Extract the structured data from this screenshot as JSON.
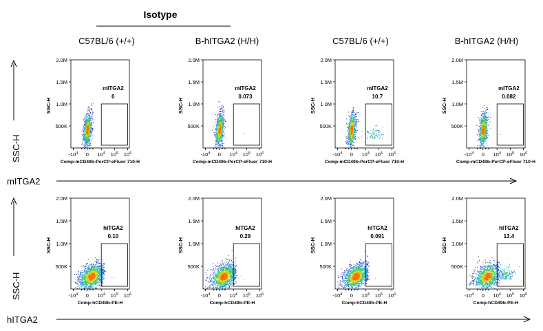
{
  "header": {
    "group_label": "Isotype",
    "column_labels": [
      "C57BL/6 (+/+)",
      "B-hITGA2 (H/H)",
      "C57BL/6 (+/+)",
      "B-hITGA2 (H/H)"
    ]
  },
  "rows": [
    {
      "axis_arrow_label": "mITGA2",
      "side_label": "SSC-H"
    },
    {
      "axis_arrow_label": "hITGA2",
      "side_label": "SSC-H"
    }
  ],
  "chart_data": [
    {
      "type": "scatter",
      "row": 0,
      "col": 0,
      "ylabel": "SSC-H",
      "xlabel": "Comp-mCD49b-PerCP-eFluor 710-H",
      "gate_label": "mITGA2",
      "gate_value": "0",
      "y_ticks": [
        "1.0M",
        "1.5M",
        "2.0M",
        "500K"
      ],
      "y_tick_values": [
        1000000,
        1500000,
        2000000,
        500000
      ],
      "x_ticks": [
        "-10^4",
        "0",
        "10^4",
        "10^5",
        "10^6"
      ],
      "x_tick_values": [
        -10000,
        0,
        10000,
        100000,
        1000000
      ],
      "x_scale": "biexponential",
      "ylim": [
        0,
        2000000
      ],
      "gate": {
        "x": [
          10000,
          1000000
        ],
        "y": [
          0,
          1000000
        ]
      }
    },
    {
      "type": "scatter",
      "row": 0,
      "col": 1,
      "ylabel": "SSC-H",
      "xlabel": "Comp-mCD49b-PerCP-eFluor 710-H",
      "gate_label": "mITGA2",
      "gate_value": "0.073",
      "y_ticks": [
        "1.0M",
        "1.5M",
        "2.0M",
        "500K"
      ],
      "y_tick_values": [
        1000000,
        1500000,
        2000000,
        500000
      ],
      "x_ticks": [
        "-10^4",
        "0",
        "10^4",
        "10^5",
        "10^6"
      ],
      "x_tick_values": [
        -10000,
        0,
        10000,
        100000,
        1000000
      ],
      "x_scale": "biexponential",
      "ylim": [
        0,
        2000000
      ],
      "gate": {
        "x": [
          10000,
          1000000
        ],
        "y": [
          0,
          1000000
        ]
      }
    },
    {
      "type": "scatter",
      "row": 0,
      "col": 2,
      "ylabel": "SSC-H",
      "xlabel": "Comp-mCD49b-PerCP-eFluor 710-H",
      "gate_label": "mITGA2",
      "gate_value": "10.7",
      "y_ticks": [
        "1.0M",
        "1.5M",
        "2.0M",
        "500K"
      ],
      "y_tick_values": [
        1000000,
        1500000,
        2000000,
        500000
      ],
      "x_ticks": [
        "-10^4",
        "0",
        "10^4",
        "10^5",
        "10^6"
      ],
      "x_tick_values": [
        -10000,
        0,
        10000,
        100000,
        1000000
      ],
      "x_scale": "biexponential",
      "ylim": [
        0,
        2000000
      ],
      "gate": {
        "x": [
          10000,
          1000000
        ],
        "y": [
          0,
          1000000
        ]
      }
    },
    {
      "type": "scatter",
      "row": 0,
      "col": 3,
      "ylabel": "SSC-H",
      "xlabel": "Comp-mCD49b-PerCP-eFluor 710-H",
      "gate_label": "mITGA2",
      "gate_value": "0.082",
      "y_ticks": [
        "1.0M",
        "1.5M",
        "2.0M",
        "500K"
      ],
      "y_tick_values": [
        1000000,
        1500000,
        2000000,
        500000
      ],
      "x_ticks": [
        "-10^4",
        "0",
        "10^4",
        "10^5",
        "10^6"
      ],
      "x_tick_values": [
        -10000,
        0,
        10000,
        100000,
        1000000
      ],
      "x_scale": "biexponential",
      "ylim": [
        0,
        2000000
      ],
      "gate": {
        "x": [
          10000,
          1000000
        ],
        "y": [
          0,
          1000000
        ]
      }
    },
    {
      "type": "scatter",
      "row": 1,
      "col": 0,
      "ylabel": "SSC-H",
      "xlabel": "Comp-hCD49b-PE-H",
      "gate_label": "hITGA2",
      "gate_value": "0.10",
      "y_ticks": [
        "1.0M",
        "1.5M",
        "2.0M",
        "500K"
      ],
      "y_tick_values": [
        1000000,
        1500000,
        2000000,
        500000
      ],
      "x_ticks": [
        "-10^4",
        "0",
        "10^4",
        "10^5",
        "10^6"
      ],
      "x_tick_values": [
        -10000,
        0,
        10000,
        100000,
        1000000
      ],
      "x_scale": "biexponential",
      "ylim": [
        0,
        2000000
      ],
      "gate": {
        "x": [
          10000,
          1000000
        ],
        "y": [
          0,
          1000000
        ]
      }
    },
    {
      "type": "scatter",
      "row": 1,
      "col": 1,
      "ylabel": "SSC-H",
      "xlabel": "Comp-hCD49b-PE-H",
      "gate_label": "hITGA2",
      "gate_value": "0.29",
      "y_ticks": [
        "1.0M",
        "1.5M",
        "2.0M",
        "500K"
      ],
      "y_tick_values": [
        1000000,
        1500000,
        2000000,
        500000
      ],
      "x_ticks": [
        "-10^4",
        "0",
        "10^4",
        "10^5",
        "10^6"
      ],
      "x_tick_values": [
        -10000,
        0,
        10000,
        100000,
        1000000
      ],
      "x_scale": "biexponential",
      "ylim": [
        0,
        2000000
      ],
      "gate": {
        "x": [
          10000,
          1000000
        ],
        "y": [
          0,
          1000000
        ]
      }
    },
    {
      "type": "scatter",
      "row": 1,
      "col": 2,
      "ylabel": "SSC-H",
      "xlabel": "Comp-hCD49b-PE-H",
      "gate_label": "hITGA2",
      "gate_value": "0.091",
      "y_ticks": [
        "1.0M",
        "1.5M",
        "2.0M",
        "500K"
      ],
      "y_tick_values": [
        1000000,
        1500000,
        2000000,
        500000
      ],
      "x_ticks": [
        "-10^4",
        "0",
        "10^4",
        "10^5",
        "10^6"
      ],
      "x_tick_values": [
        -10000,
        0,
        10000,
        100000,
        1000000
      ],
      "x_scale": "biexponential",
      "ylim": [
        0,
        2000000
      ],
      "gate": {
        "x": [
          10000,
          1000000
        ],
        "y": [
          0,
          1000000
        ]
      }
    },
    {
      "type": "scatter",
      "row": 1,
      "col": 3,
      "ylabel": "SSC-H",
      "xlabel": "Comp-hCD49b-PE-H",
      "gate_label": "hITGA2",
      "gate_value": "13.4",
      "y_ticks": [
        "1.0M",
        "1.5M",
        "2.0M",
        "500K"
      ],
      "y_tick_values": [
        1000000,
        1500000,
        2000000,
        500000
      ],
      "x_ticks": [
        "-10^4",
        "0",
        "10^4",
        "10^5",
        "10^6"
      ],
      "x_tick_values": [
        -10000,
        0,
        10000,
        100000,
        1000000
      ],
      "x_scale": "biexponential",
      "ylim": [
        0,
        2000000
      ],
      "gate": {
        "x": [
          10000,
          1000000
        ],
        "y": [
          0,
          1000000
        ]
      }
    }
  ]
}
